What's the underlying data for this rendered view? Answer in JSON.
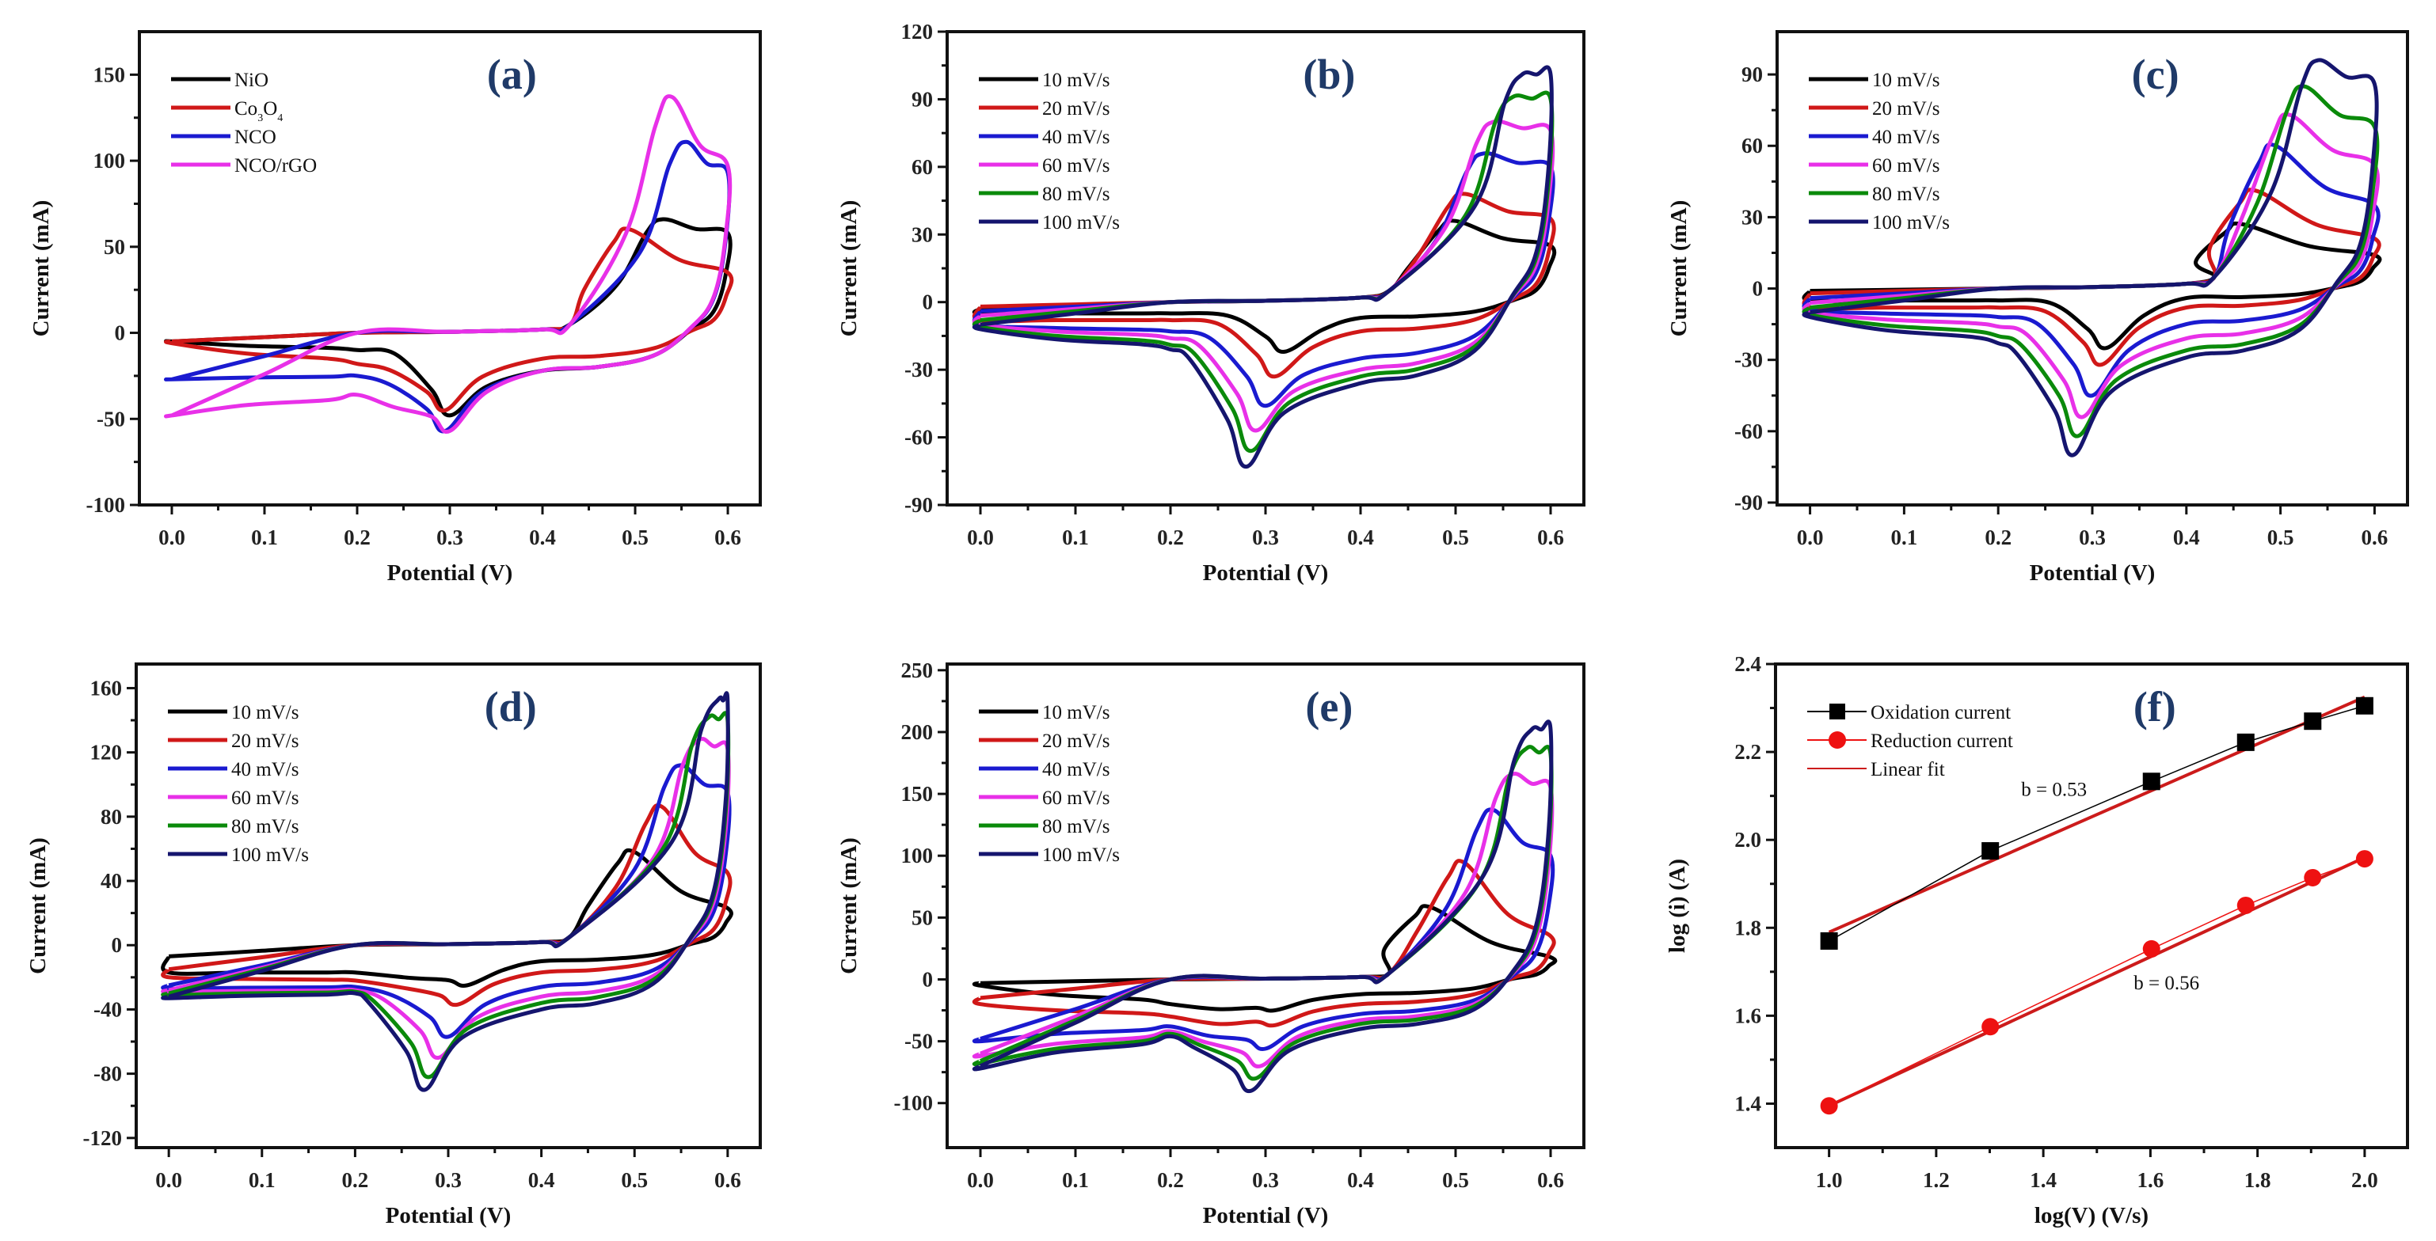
{
  "chart_data": [
    {
      "type": "line",
      "panel_label": "(a)",
      "xlabel": "Potential (V)",
      "ylabel": "Current (mA)",
      "xlim": [
        -0.035,
        0.635
      ],
      "ylim": [
        -100,
        175
      ],
      "x_ticks": [
        "0.0",
        "0.1",
        "0.2",
        "0.3",
        "0.4",
        "0.5",
        "0.6"
      ],
      "y_ticks": [
        "-100",
        "-50",
        "0",
        "50",
        "100",
        "150"
      ],
      "legend_position": "top-left",
      "series": [
        {
          "label": "NiO",
          "color": "#000000",
          "anodic_peak": [
            0.53,
            66
          ],
          "upper_end": 58,
          "cathodic_peak": [
            0.3,
            -48
          ],
          "plateau": -22,
          "shoulder": -10,
          "start": [
            -5,
            -5
          ]
        },
        {
          "label": "Co3O4",
          "label_main": "Co",
          "label_sub1": "3",
          "label_mid": "O",
          "label_sub2": "4",
          "color": "#d01818",
          "anodic_peak": [
            0.495,
            60
          ],
          "upper_end": 35,
          "cathodic_peak": [
            0.295,
            -45
          ],
          "plateau": -15,
          "shoulder": -18,
          "start": [
            -5,
            -6
          ]
        },
        {
          "label": "NCO",
          "color": "#1a1ad0",
          "anodic_peak": [
            0.555,
            111
          ],
          "upper_end": 93,
          "cathodic_peak": [
            0.295,
            -57
          ],
          "plateau": -22,
          "shoulder": -25,
          "start": [
            -27,
            -27
          ]
        },
        {
          "label": "NCO/rGO",
          "color": "#e830e8",
          "anodic_peak": [
            0.54,
            137
          ],
          "upper_end": 97,
          "cathodic_peak": [
            0.3,
            -57
          ],
          "plateau": -22,
          "shoulder": -36,
          "start": [
            -48,
            -48
          ]
        }
      ]
    },
    {
      "type": "line",
      "panel_label": "(b)",
      "xlabel": "Potential (V)",
      "ylabel": "Current (mA)",
      "xlim": [
        -0.035,
        0.635
      ],
      "ylim": [
        -90,
        120
      ],
      "x_ticks": [
        "0.0",
        "0.1",
        "0.2",
        "0.3",
        "0.4",
        "0.5",
        "0.6"
      ],
      "y_ticks": [
        "-90",
        "-60",
        "-30",
        "0",
        "30",
        "60",
        "90",
        "120"
      ],
      "legend_position": "top-left",
      "series": [
        {
          "label": "10 mV/s",
          "color": "#000000",
          "anodic_peak": [
            0.5,
            36
          ],
          "upper_end": 25,
          "cathodic_peak": [
            0.32,
            -22
          ],
          "plateau": -7,
          "shoulder": -5,
          "start": [
            -3,
            -5
          ]
        },
        {
          "label": "20 mV/s",
          "color": "#d01818",
          "anodic_peak": [
            0.51,
            48
          ],
          "upper_end": 37,
          "cathodic_peak": [
            0.31,
            -33
          ],
          "plateau": -13,
          "shoulder": -8,
          "start": [
            -2,
            -8
          ]
        },
        {
          "label": "40 mV/s",
          "color": "#1a1ad0",
          "anodic_peak": [
            0.53,
            66
          ],
          "upper_end": 60,
          "cathodic_peak": [
            0.3,
            -46
          ],
          "plateau": -25,
          "shoulder": -13,
          "start": [
            -4,
            -10
          ]
        },
        {
          "label": "60 mV/s",
          "color": "#e830e8",
          "anodic_peak": [
            0.54,
            80
          ],
          "upper_end": 76,
          "cathodic_peak": [
            0.29,
            -57
          ],
          "plateau": -30,
          "shoulder": -16,
          "start": [
            -6,
            -10
          ]
        },
        {
          "label": "80 mV/s",
          "color": "#0a8a0a",
          "anodic_peak": [
            0.56,
            91
          ],
          "upper_end": 90,
          "cathodic_peak": [
            0.285,
            -66
          ],
          "plateau": -33,
          "shoulder": -19,
          "start": [
            -8,
            -11
          ]
        },
        {
          "label": "100 mV/s",
          "color": "#15156e",
          "anodic_peak": [
            0.57,
            101
          ],
          "upper_end": 101,
          "cathodic_peak": [
            0.28,
            -73
          ],
          "plateau": -36,
          "shoulder": -21,
          "start": [
            -10,
            -12
          ]
        }
      ]
    },
    {
      "type": "line",
      "panel_label": "(c)",
      "xlabel": "Potential (V)",
      "ylabel": "Current (mA)",
      "xlim": [
        -0.035,
        0.635
      ],
      "ylim": [
        -91,
        108
      ],
      "x_ticks": [
        "0.0",
        "0.1",
        "0.2",
        "0.3",
        "0.4",
        "0.5",
        "0.6"
      ],
      "y_ticks": [
        "-90",
        "-60",
        "-30",
        "0",
        "30",
        "60",
        "90"
      ],
      "legend_position": "top-left",
      "series": [
        {
          "label": "10 mV/s",
          "color": "#000000",
          "anodic_peak": [
            0.46,
            27
          ],
          "upper_end": 14,
          "cathodic_peak": [
            0.315,
            -25
          ],
          "plateau": -4,
          "shoulder": -5,
          "start": [
            -1,
            -5
          ]
        },
        {
          "label": "20 mV/s",
          "color": "#d01818",
          "anodic_peak": [
            0.475,
            41
          ],
          "upper_end": 21,
          "cathodic_peak": [
            0.31,
            -32
          ],
          "plateau": -8,
          "shoulder": -8,
          "start": [
            -2,
            -8
          ]
        },
        {
          "label": "40 mV/s",
          "color": "#1a1ad0",
          "anodic_peak": [
            0.495,
            60
          ],
          "upper_end": 35,
          "cathodic_peak": [
            0.3,
            -45
          ],
          "plateau": -15,
          "shoulder": -12,
          "start": [
            -4,
            -9
          ]
        },
        {
          "label": "60 mV/s",
          "color": "#e830e8",
          "anodic_peak": [
            0.51,
            73
          ],
          "upper_end": 52,
          "cathodic_peak": [
            0.29,
            -54
          ],
          "plateau": -21,
          "shoulder": -16,
          "start": [
            -6,
            -10
          ]
        },
        {
          "label": "80 mV/s",
          "color": "#0a8a0a",
          "anodic_peak": [
            0.525,
            85
          ],
          "upper_end": 68,
          "cathodic_peak": [
            0.285,
            -62
          ],
          "plateau": -26,
          "shoulder": -20,
          "start": [
            -8,
            -11
          ]
        },
        {
          "label": "100 mV/s",
          "color": "#15156e",
          "anodic_peak": [
            0.54,
            96
          ],
          "upper_end": 86,
          "cathodic_peak": [
            0.28,
            -70
          ],
          "plateau": -29,
          "shoulder": -23,
          "start": [
            -10,
            -12
          ]
        }
      ]
    },
    {
      "type": "line",
      "panel_label": "(d)",
      "xlabel": "Potential (V)",
      "ylabel": "Current (mA)",
      "xlim": [
        -0.035,
        0.635
      ],
      "ylim": [
        -126,
        175
      ],
      "x_ticks": [
        "0.0",
        "0.1",
        "0.2",
        "0.3",
        "0.4",
        "0.5",
        "0.6"
      ],
      "y_ticks": [
        "-120",
        "-80",
        "-40",
        "0",
        "40",
        "80",
        "120",
        "160"
      ],
      "legend_position": "top-left",
      "series": [
        {
          "label": "10 mV/s",
          "color": "#000000",
          "anodic_peak": [
            0.5,
            58
          ],
          "upper_end": 23,
          "cathodic_peak": [
            0.32,
            -25
          ],
          "plateau": -10,
          "shoulder": -17,
          "start": [
            -7,
            -17
          ]
        },
        {
          "label": "20 mV/s",
          "color": "#d01818",
          "anodic_peak": [
            0.53,
            86
          ],
          "upper_end": 45,
          "cathodic_peak": [
            0.31,
            -37
          ],
          "plateau": -17,
          "shoulder": -22,
          "start": [
            -15,
            -20
          ]
        },
        {
          "label": "40 mV/s",
          "color": "#1a1ad0",
          "anodic_peak": [
            0.55,
            112
          ],
          "upper_end": 95,
          "cathodic_peak": [
            0.3,
            -57
          ],
          "plateau": -26,
          "shoulder": -26,
          "start": [
            -25,
            -27
          ]
        },
        {
          "label": "60 mV/s",
          "color": "#e830e8",
          "anodic_peak": [
            0.57,
            128
          ],
          "upper_end": 122,
          "cathodic_peak": [
            0.29,
            -70
          ],
          "plateau": -32,
          "shoulder": -28,
          "start": [
            -28,
            -29
          ]
        },
        {
          "label": "80 mV/s",
          "color": "#0a8a0a",
          "anodic_peak": [
            0.58,
            142
          ],
          "upper_end": 140,
          "cathodic_peak": [
            0.28,
            -82
          ],
          "plateau": -36,
          "shoulder": -29,
          "start": [
            -30,
            -31
          ]
        },
        {
          "label": "100 mV/s",
          "color": "#15156e",
          "anodic_peak": [
            0.59,
            153
          ],
          "upper_end": 152,
          "cathodic_peak": [
            0.275,
            -90
          ],
          "plateau": -40,
          "shoulder": -30,
          "start": [
            -32,
            -33
          ]
        }
      ]
    },
    {
      "type": "line",
      "panel_label": "(e)",
      "xlabel": "Potential (V)",
      "ylabel": "Current (mA)",
      "xlim": [
        -0.035,
        0.635
      ],
      "ylim": [
        -136,
        255
      ],
      "x_ticks": [
        "0.0",
        "0.1",
        "0.2",
        "0.3",
        "0.4",
        "0.5",
        "0.6"
      ],
      "y_ticks": [
        "-100",
        "-50",
        "0",
        "50",
        "100",
        "150",
        "200",
        "250"
      ],
      "legend_position": "top-left",
      "series": [
        {
          "label": "10 mV/s",
          "color": "#000000",
          "anodic_peak": [
            0.475,
            58
          ],
          "upper_end": 18,
          "cathodic_peak": [
            0.31,
            -25
          ],
          "plateau": -12,
          "shoulder": -20,
          "start": [
            -3,
            -5
          ]
        },
        {
          "label": "20 mV/s",
          "color": "#d01818",
          "anodic_peak": [
            0.51,
            94
          ],
          "upper_end": 35,
          "cathodic_peak": [
            0.31,
            -37
          ],
          "plateau": -20,
          "shoulder": -30,
          "start": [
            -15,
            -20
          ]
        },
        {
          "label": "40 mV/s",
          "color": "#1a1ad0",
          "anodic_peak": [
            0.54,
            137
          ],
          "upper_end": 100,
          "cathodic_peak": [
            0.3,
            -56
          ],
          "plateau": -28,
          "shoulder": -38,
          "start": [
            -48,
            -50
          ]
        },
        {
          "label": "60 mV/s",
          "color": "#e830e8",
          "anodic_peak": [
            0.56,
            166
          ],
          "upper_end": 155,
          "cathodic_peak": [
            0.295,
            -70
          ],
          "plateau": -33,
          "shoulder": -42,
          "start": [
            -60,
            -62
          ]
        },
        {
          "label": "80 mV/s",
          "color": "#0a8a0a",
          "anodic_peak": [
            0.575,
            187
          ],
          "upper_end": 182,
          "cathodic_peak": [
            0.29,
            -80
          ],
          "plateau": -36,
          "shoulder": -44,
          "start": [
            -66,
            -68
          ]
        },
        {
          "label": "100 mV/s",
          "color": "#15156e",
          "anodic_peak": [
            0.58,
            202
          ],
          "upper_end": 202,
          "cathodic_peak": [
            0.285,
            -90
          ],
          "plateau": -40,
          "shoulder": -46,
          "start": [
            -70,
            -72
          ]
        }
      ]
    },
    {
      "type": "scatter",
      "panel_label": "(f)",
      "xlabel": "log(V) (V/s)",
      "ylabel": "log (i) (A)",
      "xlim": [
        0.9,
        2.08
      ],
      "ylim": [
        1.3,
        2.4
      ],
      "x_ticks": [
        "1.0",
        "1.2",
        "1.4",
        "1.6",
        "1.8",
        "2.0"
      ],
      "y_ticks": [
        "1.4",
        "1.6",
        "1.8",
        "2.0",
        "2.2",
        "2.4"
      ],
      "legend_position": "top-left",
      "series": [
        {
          "label": "Oxidation current",
          "color": "#000000",
          "marker": "square",
          "x": [
            1.0,
            1.301,
            1.602,
            1.778,
            1.903,
            2.0
          ],
          "y": [
            1.77,
            1.975,
            2.133,
            2.222,
            2.27,
            2.305
          ]
        },
        {
          "label": "Reduction current",
          "color": "#ee1111",
          "marker": "circle",
          "x": [
            1.0,
            1.301,
            1.602,
            1.778,
            1.903,
            2.0
          ],
          "y": [
            1.395,
            1.575,
            1.752,
            1.851,
            1.914,
            1.957
          ]
        }
      ],
      "fits": [
        {
          "label": "Linear fit",
          "color": "#cc1b1b",
          "x": [
            1.0,
            2.0
          ],
          "y": [
            1.79,
            2.325
          ]
        },
        {
          "label": "Linear fit",
          "color": "#cc1b1b",
          "x": [
            1.0,
            2.0
          ],
          "y": [
            1.395,
            1.96
          ]
        }
      ],
      "annotations": [
        {
          "text": "b = 0.53",
          "x": 1.42,
          "y": 2.1
        },
        {
          "text": "b = 0.56",
          "x": 1.63,
          "y": 1.66
        }
      ]
    }
  ]
}
